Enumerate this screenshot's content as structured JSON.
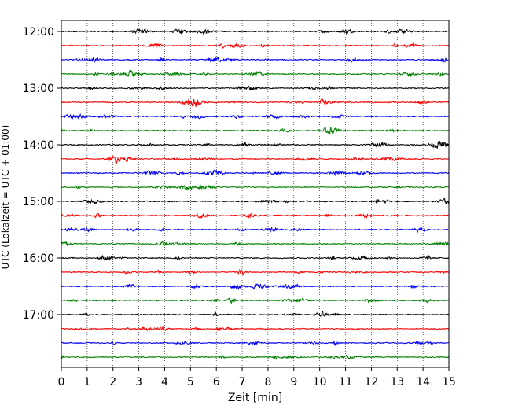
{
  "chart_data": {
    "type": "line",
    "title": "",
    "xlabel": "Zeit  [min]",
    "ylabel": "UTC (Lokalzeit = UTC + 01:00)",
    "xlim": [
      0,
      15
    ],
    "x_ticks": [
      "0",
      "1",
      "2",
      "3",
      "4",
      "5",
      "6",
      "7",
      "8",
      "9",
      "10",
      "11",
      "12",
      "13",
      "14",
      "15"
    ],
    "y_ticks": [
      {
        "label": "12:00",
        "row": 0
      },
      {
        "label": "13:00",
        "row": 4
      },
      {
        "label": "14:00",
        "row": 8
      },
      {
        "label": "15:00",
        "row": 12
      },
      {
        "label": "16:00",
        "row": 16
      },
      {
        "label": "17:00",
        "row": 20
      }
    ],
    "row_interval_minutes": 15,
    "row_count": 24,
    "colors": [
      "#000000",
      "#ff0000",
      "#0000ff",
      "#008000"
    ],
    "grid_x": true,
    "grid_style": "dotted"
  }
}
